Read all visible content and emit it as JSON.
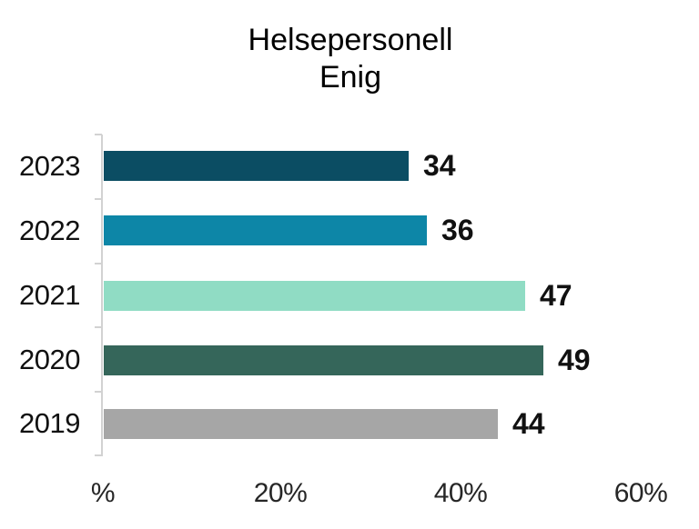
{
  "chart_data": {
    "type": "bar",
    "orientation": "horizontal",
    "title": "Helsepersonell\nEnig",
    "title_line1": "Helsepersonell",
    "title_line2": "Enig",
    "categories": [
      "2023",
      "2022",
      "2021",
      "2020",
      "2019"
    ],
    "values": [
      34,
      36,
      47,
      49,
      44
    ],
    "bar_colors": [
      "#0b4d63",
      "#0d86a7",
      "#90dcc4",
      "#35665a",
      "#a6a6a6"
    ],
    "x_tick_labels": [
      "%",
      "20%",
      "40%",
      "60%"
    ],
    "x_tick_values": [
      0,
      20,
      40,
      60
    ],
    "xlim": [
      0,
      60
    ],
    "grid": false,
    "legend": false,
    "axis_color": "#d2d2d2",
    "text_color": "#000000"
  }
}
